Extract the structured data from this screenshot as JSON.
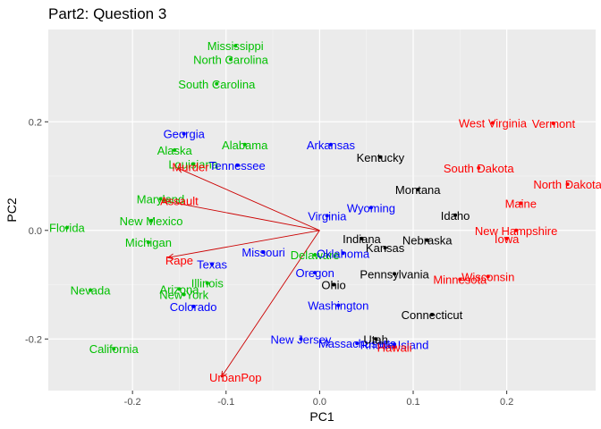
{
  "chart_data": {
    "type": "scatter",
    "title": "Part2: Question 3",
    "xlabel": "PC1",
    "ylabel": "PC2",
    "xlim": [
      -0.29,
      0.295
    ],
    "ylim": [
      -0.295,
      0.37
    ],
    "xticks": [
      -0.2,
      -0.1,
      0.0,
      0.1,
      0.2
    ],
    "xtick_labels": [
      "-0.2",
      "-0.1",
      "0.0",
      "0.1",
      "0.2"
    ],
    "yticks": [
      -0.2,
      0.0,
      0.2
    ],
    "ytick_labels": [
      "-0.2",
      "0.0",
      "0.2"
    ],
    "grid": true,
    "background": "#ebebeb",
    "group_colors": [
      "#00c000",
      "#0000ff",
      "#000000",
      "#ff0000"
    ],
    "points": [
      {
        "label": "Mississippi",
        "x": -0.09,
        "y": 0.34,
        "group": 0
      },
      {
        "label": "North Carolina",
        "x": -0.095,
        "y": 0.315,
        "group": 0
      },
      {
        "label": "South Carolina",
        "x": -0.11,
        "y": 0.27,
        "group": 0
      },
      {
        "label": "Alabama",
        "x": -0.08,
        "y": 0.158,
        "group": 0
      },
      {
        "label": "Alaska",
        "x": -0.155,
        "y": 0.148,
        "group": 0
      },
      {
        "label": "Louisiana",
        "x": -0.135,
        "y": 0.122,
        "group": 0
      },
      {
        "label": "Maryland",
        "x": -0.17,
        "y": 0.058,
        "group": 0
      },
      {
        "label": "New Mexico",
        "x": -0.18,
        "y": 0.018,
        "group": 0
      },
      {
        "label": "Florida",
        "x": -0.27,
        "y": 0.005,
        "group": 0
      },
      {
        "label": "Michigan",
        "x": -0.183,
        "y": -0.022,
        "group": 0
      },
      {
        "label": "Delaware",
        "x": -0.005,
        "y": -0.045,
        "group": 0
      },
      {
        "label": "Illinois",
        "x": -0.12,
        "y": -0.097,
        "group": 0
      },
      {
        "label": "Arizona",
        "x": -0.15,
        "y": -0.108,
        "group": 0
      },
      {
        "label": "New York",
        "x": -0.145,
        "y": -0.118,
        "group": 0
      },
      {
        "label": "Nevada",
        "x": -0.245,
        "y": -0.11,
        "group": 0
      },
      {
        "label": "California",
        "x": -0.22,
        "y": -0.218,
        "group": 0
      },
      {
        "label": "Georgia",
        "x": -0.145,
        "y": 0.178,
        "group": 1
      },
      {
        "label": "Arkansas",
        "x": 0.012,
        "y": 0.158,
        "group": 1
      },
      {
        "label": "Tennessee",
        "x": -0.088,
        "y": 0.12,
        "group": 1
      },
      {
        "label": "Wyoming",
        "x": 0.055,
        "y": 0.042,
        "group": 1
      },
      {
        "label": "Virginia",
        "x": 0.008,
        "y": 0.027,
        "group": 1
      },
      {
        "label": "Missouri",
        "x": -0.06,
        "y": -0.04,
        "group": 1
      },
      {
        "label": "Oklahoma",
        "x": 0.025,
        "y": -0.042,
        "group": 1
      },
      {
        "label": "Texas",
        "x": -0.115,
        "y": -0.062,
        "group": 1
      },
      {
        "label": "Oregon",
        "x": -0.005,
        "y": -0.078,
        "group": 1
      },
      {
        "label": "Colorado",
        "x": -0.135,
        "y": -0.14,
        "group": 1
      },
      {
        "label": "Washington",
        "x": 0.02,
        "y": -0.138,
        "group": 1
      },
      {
        "label": "New Jersey",
        "x": -0.02,
        "y": -0.2,
        "group": 1
      },
      {
        "label": "Massachusetts",
        "x": 0.04,
        "y": -0.208,
        "group": 1
      },
      {
        "label": "Rhode Island",
        "x": 0.08,
        "y": -0.21,
        "group": 1
      },
      {
        "label": "Kentucky",
        "x": 0.065,
        "y": 0.135,
        "group": 2
      },
      {
        "label": "Montana",
        "x": 0.105,
        "y": 0.075,
        "group": 2
      },
      {
        "label": "Idaho",
        "x": 0.145,
        "y": 0.028,
        "group": 2
      },
      {
        "label": "Indiana",
        "x": 0.045,
        "y": -0.015,
        "group": 2
      },
      {
        "label": "Nebraska",
        "x": 0.115,
        "y": -0.018,
        "group": 2
      },
      {
        "label": "Kansas",
        "x": 0.07,
        "y": -0.032,
        "group": 2
      },
      {
        "label": "Pennsylvania",
        "x": 0.08,
        "y": -0.08,
        "group": 2
      },
      {
        "label": "Ohio",
        "x": 0.015,
        "y": -0.1,
        "group": 2
      },
      {
        "label": "Connecticut",
        "x": 0.12,
        "y": -0.155,
        "group": 2
      },
      {
        "label": "Utah",
        "x": 0.06,
        "y": -0.2,
        "group": 2
      },
      {
        "label": "West Virginia",
        "x": 0.185,
        "y": 0.198,
        "group": 3
      },
      {
        "label": "Vermont",
        "x": 0.25,
        "y": 0.197,
        "group": 3
      },
      {
        "label": "South Dakota",
        "x": 0.17,
        "y": 0.115,
        "group": 3
      },
      {
        "label": "North Dakota",
        "x": 0.265,
        "y": 0.085,
        "group": 3
      },
      {
        "label": "Maine",
        "x": 0.215,
        "y": 0.05,
        "group": 3
      },
      {
        "label": "New Hampshire",
        "x": 0.21,
        "y": 0.0,
        "group": 3
      },
      {
        "label": "Iowa",
        "x": 0.2,
        "y": -0.015,
        "group": 3
      },
      {
        "label": "Wisconsin",
        "x": 0.18,
        "y": -0.085,
        "group": 3
      },
      {
        "label": "Minnesota",
        "x": 0.15,
        "y": -0.09,
        "group": 3
      },
      {
        "label": "Hawaii",
        "x": 0.08,
        "y": -0.215,
        "group": 3
      },
      {
        "label": "Murder",
        "x": -0.138,
        "y": 0.117,
        "group": 3
      },
      {
        "label": "Assault",
        "x": -0.15,
        "y": 0.055,
        "group": 3
      },
      {
        "label": "Rape",
        "x": -0.15,
        "y": -0.055,
        "group": 3
      },
      {
        "label": "UrbanPop",
        "x": -0.09,
        "y": -0.27,
        "group": 3
      }
    ],
    "loadings": [
      {
        "label": "Murder",
        "x": -0.152,
        "y": 0.115
      },
      {
        "label": "Assault",
        "x": -0.168,
        "y": 0.055
      },
      {
        "label": "Rape",
        "x": -0.162,
        "y": -0.05
      },
      {
        "label": "UrbanPop",
        "x": -0.105,
        "y": -0.27
      }
    ],
    "loading_color": "#cc0000"
  }
}
